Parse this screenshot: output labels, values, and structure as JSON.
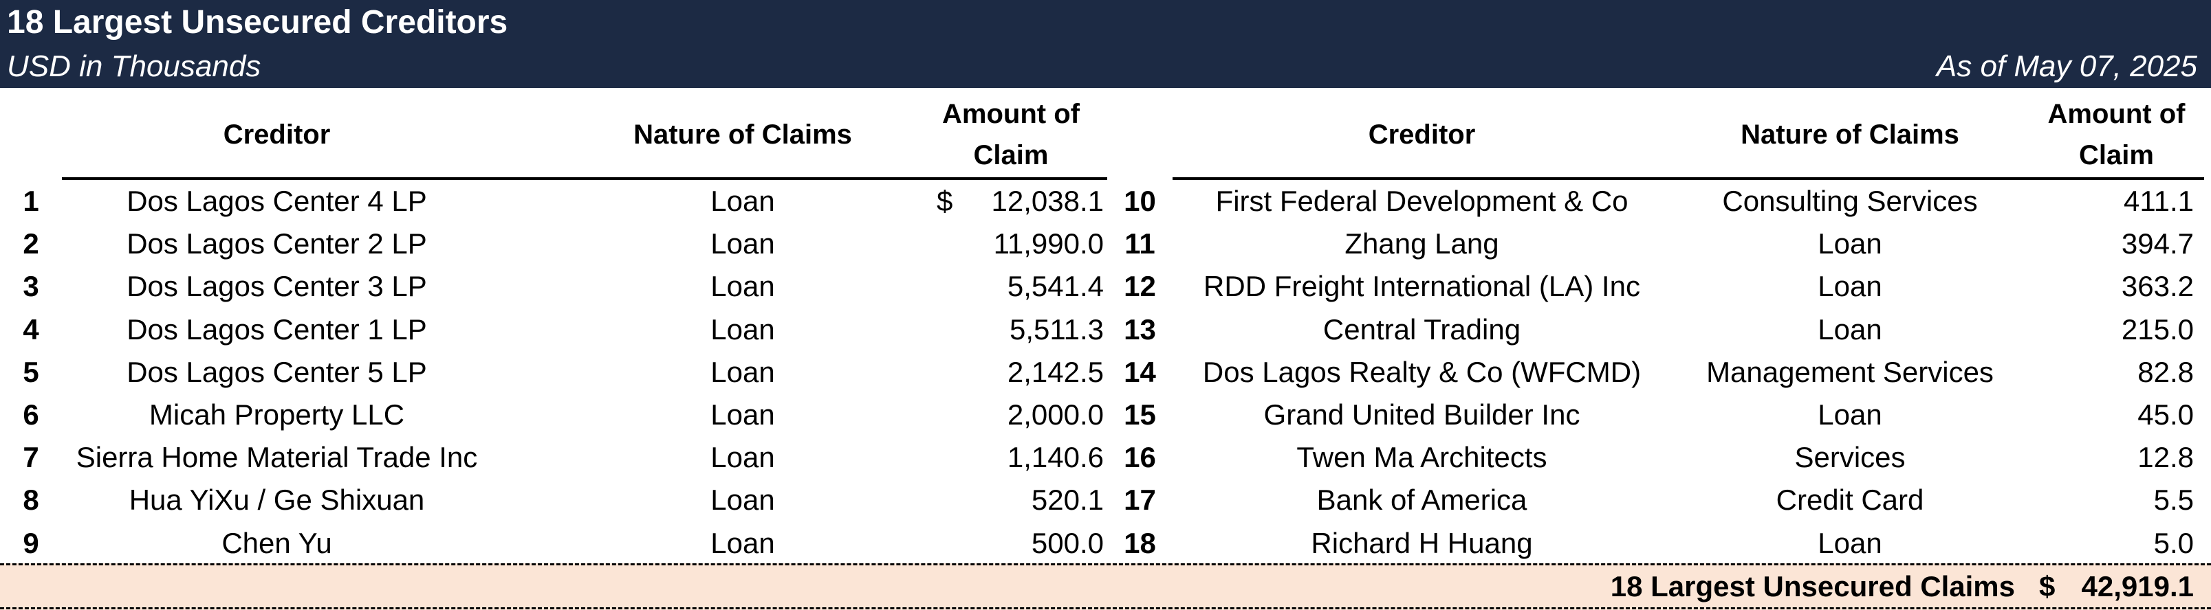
{
  "header": {
    "title": "18 Largest Unsecured Creditors",
    "subtitle": "USD in Thousands",
    "as_of": "As of May 07, 2025"
  },
  "columns": {
    "creditor": "Creditor",
    "nature": "Nature of Claims",
    "amount_line1": "Amount of",
    "amount_line2": "Claim"
  },
  "currency_symbol": "$",
  "left_rows": [
    {
      "num": "1",
      "creditor": "Dos Lagos Center 4 LP",
      "nature": "Loan",
      "amount": "12,038.1",
      "currency": "$"
    },
    {
      "num": "2",
      "creditor": "Dos Lagos Center 2 LP",
      "nature": "Loan",
      "amount": "11,990.0",
      "currency": ""
    },
    {
      "num": "3",
      "creditor": "Dos Lagos Center 3 LP",
      "nature": "Loan",
      "amount": "5,541.4",
      "currency": ""
    },
    {
      "num": "4",
      "creditor": "Dos Lagos Center 1 LP",
      "nature": "Loan",
      "amount": "5,511.3",
      "currency": ""
    },
    {
      "num": "5",
      "creditor": "Dos Lagos Center 5 LP",
      "nature": "Loan",
      "amount": "2,142.5",
      "currency": ""
    },
    {
      "num": "6",
      "creditor": "Micah Property LLC",
      "nature": "Loan",
      "amount": "2,000.0",
      "currency": ""
    },
    {
      "num": "7",
      "creditor": "Sierra Home Material Trade Inc",
      "nature": "Loan",
      "amount": "1,140.6",
      "currency": ""
    },
    {
      "num": "8",
      "creditor": "Hua YiXu / Ge Shixuan",
      "nature": "Loan",
      "amount": "520.1",
      "currency": ""
    },
    {
      "num": "9",
      "creditor": "Chen Yu",
      "nature": "Loan",
      "amount": "500.0",
      "currency": ""
    }
  ],
  "right_rows": [
    {
      "num": "10",
      "creditor": "First Federal Development & Co",
      "nature": "Consulting Services",
      "amount": "411.1"
    },
    {
      "num": "11",
      "creditor": "Zhang Lang",
      "nature": "Loan",
      "amount": "394.7"
    },
    {
      "num": "12",
      "creditor": "RDD Freight International (LA) Inc",
      "nature": "Loan",
      "amount": "363.2"
    },
    {
      "num": "13",
      "creditor": "Central Trading",
      "nature": "Loan",
      "amount": "215.0"
    },
    {
      "num": "14",
      "creditor": "Dos Lagos Realty & Co (WFCMD)",
      "nature": "Management Services",
      "amount": "82.8"
    },
    {
      "num": "15",
      "creditor": "Grand United Builder Inc",
      "nature": "Loan",
      "amount": "45.0"
    },
    {
      "num": "16",
      "creditor": "Twen Ma Architects",
      "nature": "Services",
      "amount": "12.8"
    },
    {
      "num": "17",
      "creditor": "Bank of America",
      "nature": "Credit Card",
      "amount": "5.5"
    },
    {
      "num": "18",
      "creditor": "Richard H Huang",
      "nature": "Loan",
      "amount": "5.0"
    }
  ],
  "total": {
    "label": "18 Largest Unsecured Claims",
    "currency": "$",
    "amount": "42,919.1"
  },
  "colors": {
    "header_bg": "#1c2a44",
    "total_band": "#fbe5d6"
  }
}
